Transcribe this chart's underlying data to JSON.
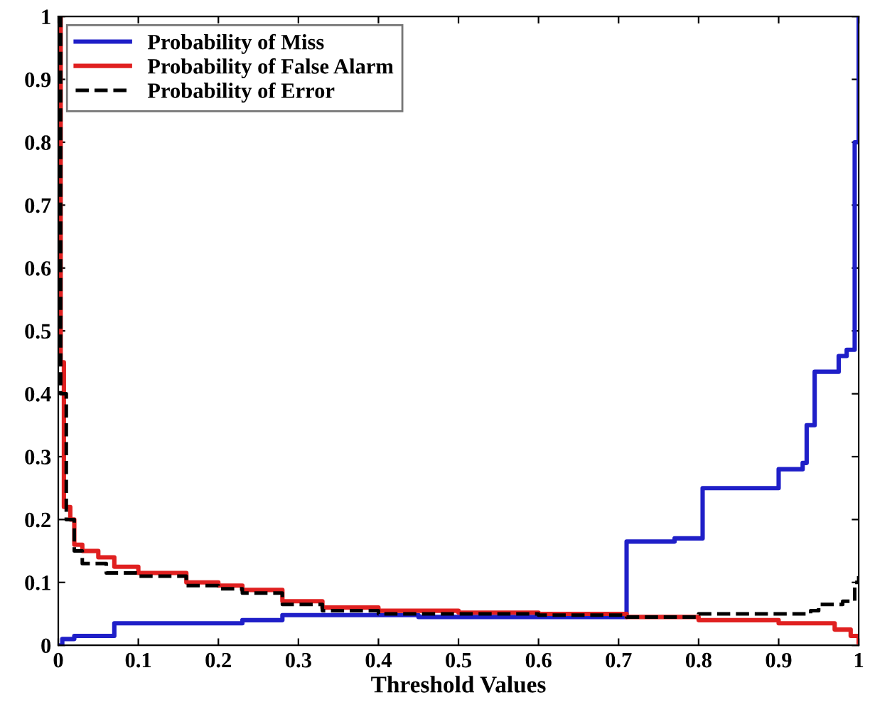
{
  "chart_data": {
    "type": "step",
    "xlabel": "Threshold Values",
    "xlim": [
      0,
      1
    ],
    "ylim": [
      0,
      1
    ],
    "xticks": [
      0,
      0.1,
      0.2,
      0.3,
      0.4,
      0.5,
      0.6,
      0.7,
      0.8,
      0.9,
      1
    ],
    "yticks": [
      0,
      0.1,
      0.2,
      0.3,
      0.4,
      0.5,
      0.6,
      0.7,
      0.8,
      0.9,
      1
    ],
    "grid": false,
    "legend": "top left",
    "series": [
      {
        "name": "Probability of Miss",
        "color": "#1f1fc8",
        "line_style": "solid",
        "x": [
          0,
          0.005,
          0.02,
          0.07,
          0.23,
          0.28,
          0.45,
          0.71,
          0.77,
          0.805,
          0.9,
          0.93,
          0.935,
          0.945,
          0.975,
          0.985,
          0.995,
          1
        ],
        "values": [
          0,
          0.01,
          0.015,
          0.035,
          0.04,
          0.048,
          0.045,
          0.165,
          0.17,
          0.25,
          0.28,
          0.29,
          0.35,
          0.435,
          0.46,
          0.47,
          0.8,
          1
        ]
      },
      {
        "name": "Probability of False Alarm",
        "color": "#e02020",
        "line_style": "solid",
        "x": [
          0,
          0.003,
          0.007,
          0.015,
          0.02,
          0.03,
          0.05,
          0.07,
          0.1,
          0.16,
          0.2,
          0.23,
          0.28,
          0.33,
          0.4,
          0.5,
          0.6,
          0.71,
          0.8,
          0.9,
          0.97,
          0.99,
          1
        ],
        "values": [
          1,
          0.45,
          0.22,
          0.2,
          0.16,
          0.15,
          0.14,
          0.125,
          0.115,
          0.1,
          0.095,
          0.088,
          0.07,
          0.06,
          0.055,
          0.052,
          0.05,
          0.045,
          0.04,
          0.035,
          0.025,
          0.015,
          0.005
        ]
      },
      {
        "name": "Probability of Error",
        "color": "#000000",
        "line_style": "dashed",
        "x": [
          0,
          0.003,
          0.01,
          0.02,
          0.03,
          0.06,
          0.1,
          0.16,
          0.2,
          0.23,
          0.28,
          0.33,
          0.4,
          0.6,
          0.71,
          0.8,
          0.94,
          0.95,
          0.98,
          0.995,
          1
        ],
        "values": [
          1,
          0.4,
          0.2,
          0.15,
          0.13,
          0.115,
          0.11,
          0.095,
          0.09,
          0.083,
          0.065,
          0.055,
          0.05,
          0.048,
          0.045,
          0.05,
          0.055,
          0.065,
          0.07,
          0.1,
          0.11
        ]
      }
    ]
  }
}
